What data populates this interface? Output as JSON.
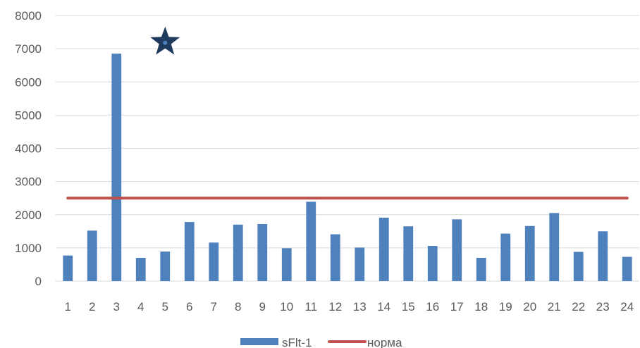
{
  "chart_data": {
    "type": "bar",
    "categories": [
      "1",
      "2",
      "3",
      "4",
      "5",
      "6",
      "7",
      "8",
      "9",
      "10",
      "11",
      "12",
      "13",
      "14",
      "15",
      "16",
      "17",
      "18",
      "19",
      "20",
      "21",
      "22",
      "23",
      "24"
    ],
    "series": [
      {
        "name": "sFlt-1",
        "type": "bar",
        "color": "#4f81bd",
        "values": [
          770,
          1520,
          6850,
          700,
          890,
          1780,
          1160,
          1700,
          1720,
          990,
          2390,
          1410,
          1010,
          1910,
          1650,
          1060,
          1860,
          700,
          1430,
          1660,
          2050,
          880,
          1500,
          730
        ]
      },
      {
        "name": "норма",
        "type": "line",
        "color": "#c0504d",
        "value": 2500
      }
    ],
    "yticks": [
      "0",
      "1000",
      "2000",
      "3000",
      "4000",
      "5000",
      "6000",
      "7000",
      "8000"
    ],
    "ylim": [
      0,
      8000
    ],
    "grid": true,
    "legend_position": "bottom",
    "annotation": {
      "icon": "star-icon",
      "category": "5",
      "y": 7200,
      "color": "#1f3a5f"
    }
  }
}
